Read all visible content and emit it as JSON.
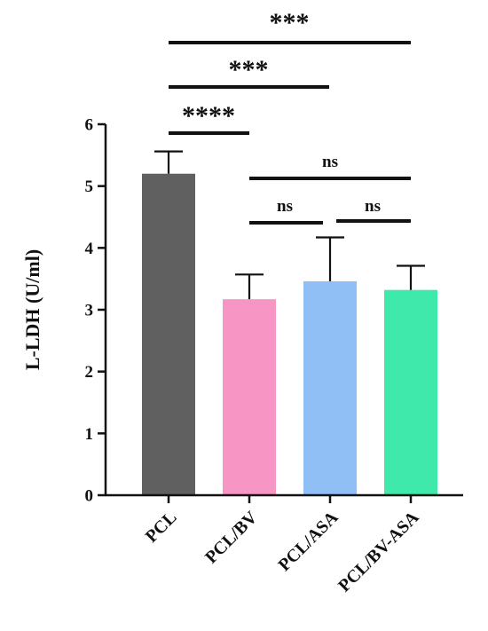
{
  "chart_data": {
    "type": "bar",
    "title": "",
    "xlabel": "",
    "ylabel": "L-LDH (U/ml)",
    "ylim": [
      0,
      6
    ],
    "yticks": [
      "0",
      "1",
      "2",
      "3",
      "4",
      "5",
      "6"
    ],
    "grid": false,
    "legend": "none",
    "categories": [
      "PCL",
      "PCL/BV",
      "PCL/ASA",
      "PCL/BV-ASA"
    ],
    "values": [
      5.2,
      3.17,
      3.46,
      3.32
    ],
    "errors": [
      0.36,
      0.4,
      0.71,
      0.39
    ],
    "colors": [
      "#606060",
      "#f796c4",
      "#8fbff5",
      "#3fe8ab"
    ],
    "significance": [
      {
        "from": 0,
        "to": 3,
        "label": "***"
      },
      {
        "from": 0,
        "to": 2,
        "label": "***"
      },
      {
        "from": 0,
        "to": 1,
        "label": "****"
      },
      {
        "from": 1,
        "to": 3,
        "label": "ns"
      },
      {
        "from": 1,
        "to": 2,
        "label": "ns"
      },
      {
        "from": 2,
        "to": 3,
        "label": "ns"
      }
    ]
  }
}
